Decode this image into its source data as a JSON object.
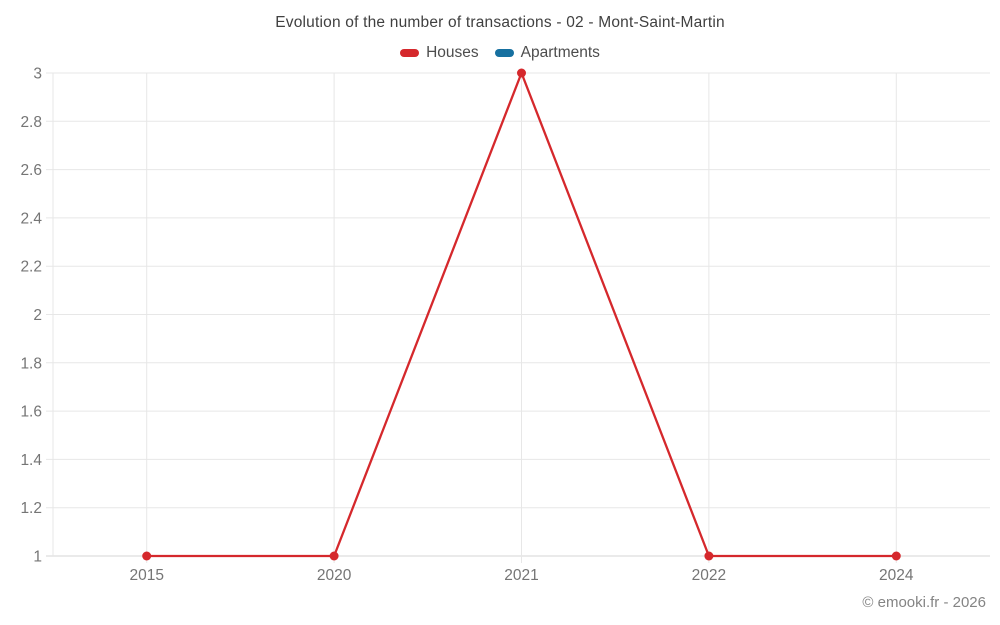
{
  "header": {
    "title": "Evolution of the number of transactions - 02 - Mont-Saint-Martin",
    "legend": [
      {
        "label": "Houses",
        "color": "#d5282c"
      },
      {
        "label": "Apartments",
        "color": "#1670a0"
      }
    ]
  },
  "footer": {
    "copyright": "© emooki.fr - 2026"
  },
  "colors": {
    "houses": "#d5282c",
    "apartments": "#1670a0",
    "gridline": "#e7e7e7",
    "axis_line": "#d4d4d4",
    "tick_label": "#757575"
  },
  "chart_data": {
    "type": "line",
    "title": "Evolution of the number of transactions - 02 - Mont-Saint-Martin",
    "categories": [
      "2015",
      "2020",
      "2021",
      "2022",
      "2024"
    ],
    "series": [
      {
        "name": "Houses",
        "color": "#d5282c",
        "values": [
          1,
          1,
          3,
          1,
          1
        ]
      },
      {
        "name": "Apartments",
        "color": "#1670a0",
        "values": []
      }
    ],
    "xlabel": "",
    "ylabel": "",
    "ylim": [
      1,
      3
    ],
    "ytick_step": 0.2,
    "ytick_labels": [
      "1",
      "1.2",
      "1.4",
      "1.6",
      "1.8",
      "2",
      "2.2",
      "2.4",
      "2.6",
      "2.8",
      "3"
    ],
    "grid": true,
    "legend_position": "top"
  }
}
